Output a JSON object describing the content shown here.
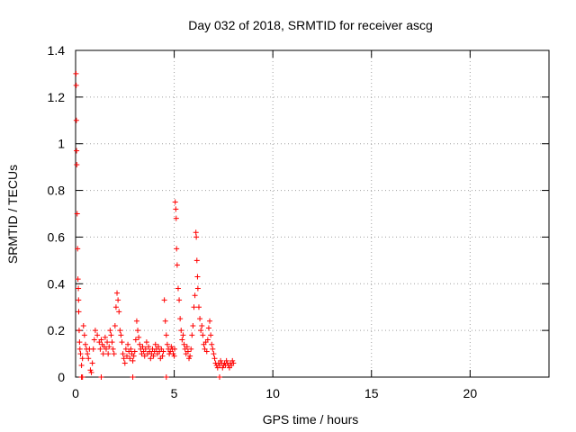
{
  "chart_data": {
    "type": "scatter",
    "title": "Day 032 of 2018, SRMTID for receiver ascg",
    "xlabel": "GPS time / hours",
    "ylabel": "SRMTID / TECUs",
    "xlim": [
      0,
      24
    ],
    "ylim": [
      0,
      1.4
    ],
    "xticks": [
      0,
      5,
      10,
      15,
      20
    ],
    "xtick_labels": [
      "0",
      "5",
      "10",
      "15",
      "20"
    ],
    "yticks": [
      0,
      0.2,
      0.4,
      0.6,
      0.8,
      1,
      1.2,
      1.4
    ],
    "ytick_labels": [
      "0",
      "0.2",
      "0.4",
      "0.6",
      "0.8",
      "1",
      "1.2",
      "1.4"
    ],
    "grid": true,
    "marker": "+",
    "colors": {
      "series": "#ff0000",
      "axes": "#000000",
      "grid": "#a0a0a0"
    },
    "series": [
      {
        "name": "SRMTID",
        "x": [
          0.02,
          0.03,
          0.04,
          0.05,
          0.06,
          0.08,
          0.1,
          0.12,
          0.14,
          0.15,
          0.16,
          0.18,
          0.2,
          0.22,
          0.25,
          0.3,
          0.35,
          0.4,
          0.45,
          0.5,
          0.55,
          0.6,
          0.65,
          0.7,
          0.75,
          0.8,
          0.85,
          0.9,
          0.95,
          1.0,
          1.1,
          1.2,
          1.25,
          1.3,
          1.35,
          1.4,
          1.45,
          1.5,
          1.55,
          1.6,
          1.65,
          1.7,
          1.75,
          1.8,
          1.85,
          1.9,
          1.95,
          2.0,
          2.05,
          2.1,
          2.15,
          2.2,
          2.25,
          2.3,
          2.35,
          2.4,
          2.45,
          2.5,
          2.55,
          2.6,
          2.65,
          2.7,
          2.75,
          2.8,
          2.85,
          2.9,
          2.95,
          3.0,
          3.05,
          3.1,
          3.15,
          3.2,
          3.25,
          3.3,
          3.35,
          3.4,
          3.45,
          3.5,
          3.55,
          3.6,
          3.65,
          3.7,
          3.75,
          3.8,
          3.85,
          3.9,
          3.95,
          4.0,
          4.05,
          4.1,
          4.15,
          4.2,
          4.25,
          4.3,
          4.35,
          4.4,
          4.45,
          4.5,
          4.55,
          4.6,
          4.65,
          4.7,
          4.75,
          4.8,
          4.85,
          4.9,
          4.95,
          5.0,
          5.02,
          5.05,
          5.08,
          5.1,
          5.12,
          5.15,
          5.2,
          5.25,
          5.3,
          5.35,
          5.4,
          5.45,
          5.5,
          5.55,
          5.6,
          5.65,
          5.7,
          5.75,
          5.8,
          5.85,
          5.9,
          5.95,
          6.0,
          6.05,
          6.1,
          6.12,
          6.15,
          6.18,
          6.2,
          6.25,
          6.3,
          6.35,
          6.4,
          6.45,
          6.5,
          6.55,
          6.6,
          6.65,
          6.7,
          6.75,
          6.8,
          6.85,
          6.9,
          6.95,
          7.0,
          7.05,
          7.1,
          7.15,
          7.2,
          7.25,
          7.3,
          7.35,
          7.4,
          7.45,
          7.5,
          7.55,
          7.6,
          7.65,
          7.7,
          7.75,
          7.8,
          7.85,
          7.9,
          7.95,
          8.0,
          0.3,
          0.35,
          1.3,
          2.9,
          4.6,
          7.3
        ],
        "y": [
          1.3,
          1.25,
          1.1,
          0.97,
          0.91,
          0.7,
          0.55,
          0.42,
          0.38,
          0.33,
          0.28,
          0.2,
          0.15,
          0.12,
          0.1,
          0.05,
          0.08,
          0.22,
          0.18,
          0.14,
          0.12,
          0.1,
          0.08,
          0.12,
          0.03,
          0.02,
          0.06,
          0.12,
          0.16,
          0.2,
          0.18,
          0.15,
          0.12,
          0.16,
          0.14,
          0.1,
          0.13,
          0.17,
          0.12,
          0.15,
          0.1,
          0.13,
          0.2,
          0.18,
          0.15,
          0.12,
          0.1,
          0.22,
          0.3,
          0.36,
          0.33,
          0.28,
          0.2,
          0.18,
          0.15,
          0.1,
          0.08,
          0.06,
          0.12,
          0.09,
          0.14,
          0.11,
          0.08,
          0.12,
          0.1,
          0.07,
          0.09,
          0.11,
          0.16,
          0.24,
          0.2,
          0.17,
          0.14,
          0.12,
          0.1,
          0.13,
          0.11,
          0.09,
          0.12,
          0.15,
          0.1,
          0.13,
          0.11,
          0.08,
          0.1,
          0.12,
          0.09,
          0.11,
          0.14,
          0.12,
          0.1,
          0.13,
          0.11,
          0.08,
          0.12,
          0.09,
          0.11,
          0.33,
          0.24,
          0.18,
          0.14,
          0.12,
          0.1,
          0.11,
          0.13,
          0.12,
          0.1,
          0.09,
          0.12,
          0.75,
          0.72,
          0.68,
          0.55,
          0.48,
          0.38,
          0.33,
          0.25,
          0.2,
          0.16,
          0.18,
          0.14,
          0.12,
          0.1,
          0.13,
          0.11,
          0.08,
          0.09,
          0.12,
          0.18,
          0.22,
          0.3,
          0.35,
          0.62,
          0.6,
          0.5,
          0.43,
          0.38,
          0.3,
          0.25,
          0.2,
          0.22,
          0.18,
          0.14,
          0.12,
          0.15,
          0.11,
          0.16,
          0.21,
          0.24,
          0.18,
          0.14,
          0.12,
          0.1,
          0.08,
          0.06,
          0.05,
          0.04,
          0.06,
          0.05,
          0.07,
          0.06,
          0.04,
          0.05,
          0.06,
          0.05,
          0.07,
          0.06,
          0.05,
          0.04,
          0.06,
          0.05,
          0.07,
          0.06,
          0,
          0,
          0,
          0,
          0,
          0
        ]
      }
    ]
  }
}
